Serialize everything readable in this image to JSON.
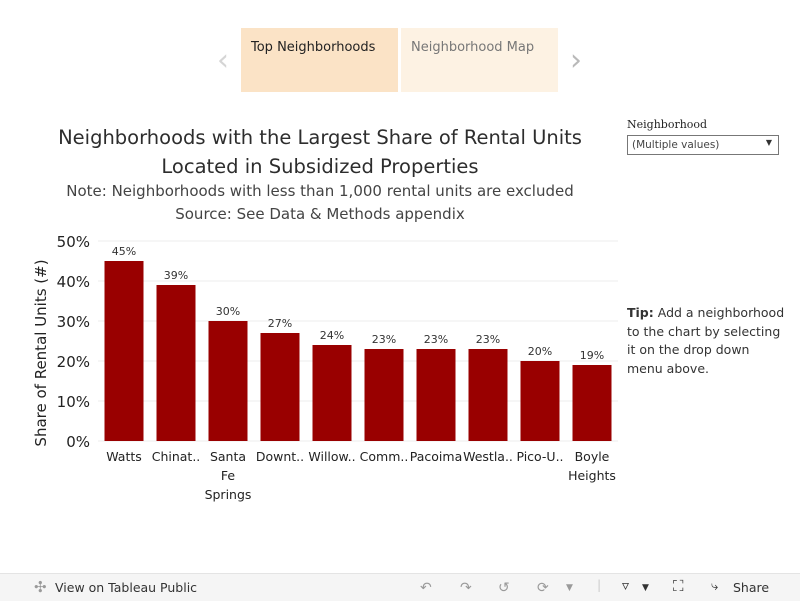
{
  "story": {
    "tabs": [
      {
        "label": "Top Neighborhoods",
        "active": true
      },
      {
        "label": "Neighborhood Map",
        "active": false
      }
    ]
  },
  "filter": {
    "label": "Neighborhood",
    "value": "(Multiple values)"
  },
  "tip": {
    "bold": "Tip:",
    "text": " Add a neighborhood to the chart by selecting it on the drop down menu above."
  },
  "footer": {
    "view_label": "View on Tableau Public",
    "share_label": "Share"
  },
  "chart_data": {
    "type": "bar",
    "title": "Neighborhoods with the Largest Share of Rental Units Located in Subsidized Properties",
    "subtitle": "Note: Neighborhoods with less than 1,000 rental units are excluded",
    "source": "Source: See Data & Methods appendix",
    "ylabel": "Share of Rental Units (#)",
    "xlabel": "",
    "categories": [
      [
        "Watts"
      ],
      [
        "Chinat.."
      ],
      [
        "Santa",
        "Fe",
        "Springs"
      ],
      [
        "Downt.."
      ],
      [
        "Willow.."
      ],
      [
        "Comm.."
      ],
      [
        "Pacoima"
      ],
      [
        "Westla.."
      ],
      [
        "Pico-U.."
      ],
      [
        "Boyle",
        "Heights"
      ]
    ],
    "values": [
      45,
      39,
      30,
      27,
      24,
      23,
      23,
      23,
      20,
      19
    ],
    "value_labels": [
      "45%",
      "39%",
      "30%",
      "27%",
      "24%",
      "23%",
      "23%",
      "23%",
      "20%",
      "19%"
    ],
    "yticks": [
      0,
      10,
      20,
      30,
      40,
      50
    ],
    "ytick_labels": [
      "0%",
      "10%",
      "20%",
      "30%",
      "40%",
      "50%"
    ],
    "ylim": [
      0,
      50
    ],
    "grid": true,
    "bar_color": "#990000"
  }
}
